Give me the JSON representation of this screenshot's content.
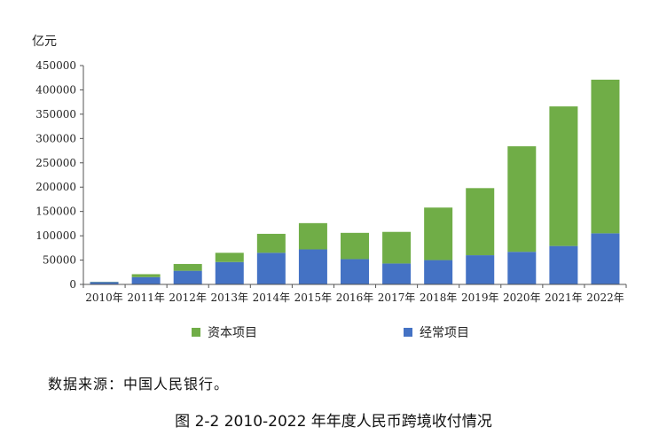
{
  "chart_data": {
    "type": "bar",
    "stacked": true,
    "unit_label": "亿元",
    "categories": [
      "2010年",
      "2011年",
      "2012年",
      "2013年",
      "2014年",
      "2015年",
      "2016年",
      "2017年",
      "2018年",
      "2019年",
      "2020年",
      "2021年",
      "2022年"
    ],
    "series": [
      {
        "name": "经常项目",
        "color": "#4472C4",
        "values": [
          5000,
          15000,
          28000,
          46000,
          65000,
          72000,
          52000,
          43000,
          50000,
          60000,
          67000,
          79000,
          105000
        ]
      },
      {
        "name": "资本项目",
        "color": "#70AD47",
        "values": [
          500,
          6000,
          14000,
          19000,
          39000,
          54000,
          54000,
          65000,
          108000,
          138000,
          217000,
          287000,
          316000
        ]
      }
    ],
    "ylim": [
      0,
      450000
    ],
    "yticks": [
      "0",
      "50000",
      "100000",
      "150000",
      "200000",
      "250000",
      "300000",
      "350000",
      "400000",
      "450000"
    ],
    "legend": [
      "资本项目",
      "经常项目"
    ],
    "legend_position": "bottom",
    "grid": false
  },
  "source_text": "数据来源：中国人民银行。",
  "figure_caption": "图 2-2 2010-2022 年年度人民币跨境收付情况"
}
